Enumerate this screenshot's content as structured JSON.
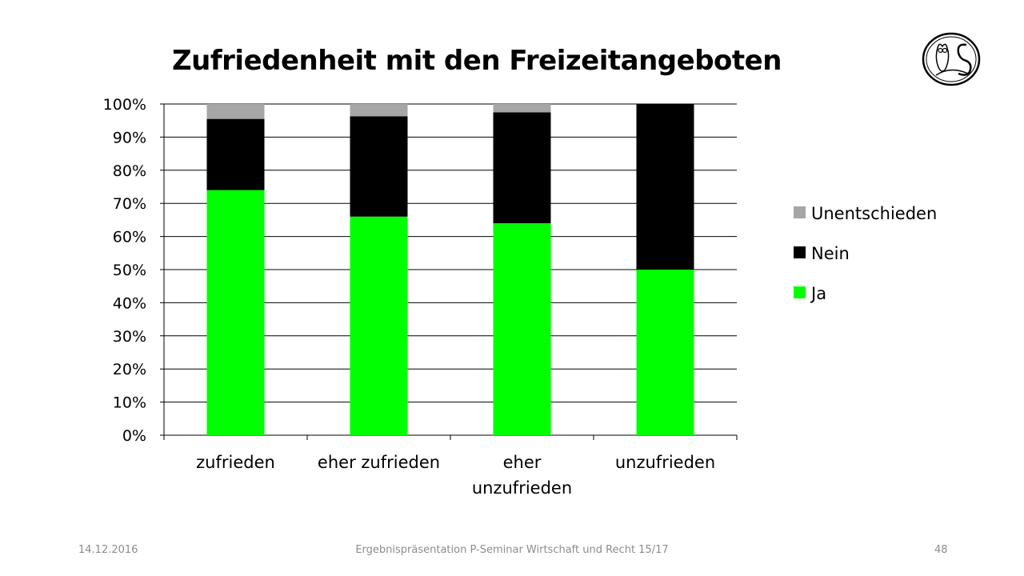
{
  "slide": {
    "title": "Zufriedenheit mit den Freizeitangeboten",
    "footer_date": "14.12.2016",
    "footer_center": "Ergebnispräsentation P-Seminar Wirtschaft und Recht 15/17",
    "page_number": "48"
  },
  "chart_data": {
    "type": "bar",
    "stacked": true,
    "percent": true,
    "title": "",
    "categories": [
      [
        "zufrieden"
      ],
      [
        "eher zufrieden"
      ],
      [
        "eher",
        "unzufrieden"
      ],
      [
        "unzufrieden"
      ]
    ],
    "series": [
      {
        "name": "Ja",
        "color": "#00ff00",
        "values": [
          74,
          66,
          64,
          50
        ]
      },
      {
        "name": "Nein",
        "color": "#000000",
        "values": [
          21.5,
          30.3,
          33.5,
          50
        ]
      },
      {
        "name": "Unentschieden",
        "color": "#a6a6a6",
        "values": [
          4.5,
          3.7,
          2.5,
          0
        ]
      }
    ],
    "ylim": [
      0,
      100
    ],
    "yticks": [
      "0%",
      "10%",
      "20%",
      "30%",
      "40%",
      "50%",
      "60%",
      "70%",
      "80%",
      "90%",
      "100%"
    ],
    "grid": true,
    "legend_position": "right",
    "legend_order": [
      "Unentschieden",
      "Nein",
      "Ja"
    ]
  }
}
